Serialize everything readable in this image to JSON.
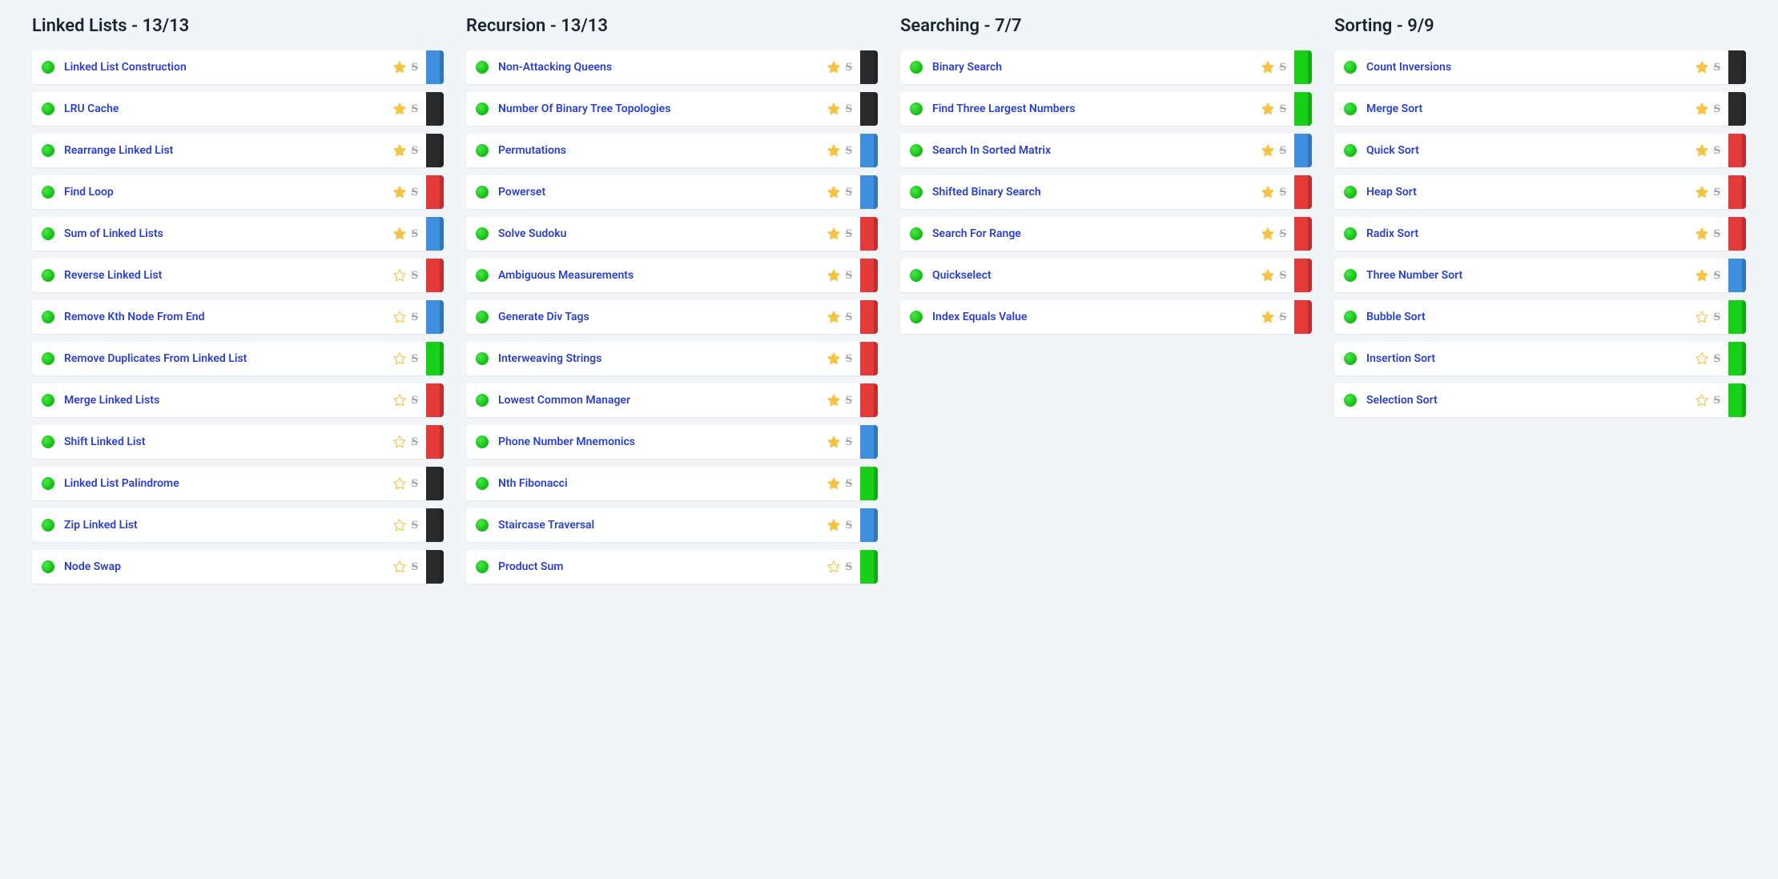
{
  "colors": {
    "background": "#f2f5f8",
    "card_bg": "#ffffff",
    "title_text": "#1a2533",
    "link_text": "#2b3fd1",
    "scratch": "#9aa3ad",
    "star_fill": "#f6c445",
    "star_stroke": "#f6c445",
    "dot": "#17c217",
    "diff": {
      "green": "#18d018",
      "blue": "#3f8fe0",
      "red": "#e43a3a",
      "black": "#2a2a2a"
    }
  },
  "scratch_glyph": "S",
  "columns": [
    {
      "title": "Linked Lists - 13/13",
      "items": [
        {
          "label": "Linked List Construction",
          "star": true,
          "diff": "blue"
        },
        {
          "label": "LRU Cache",
          "star": true,
          "diff": "black"
        },
        {
          "label": "Rearrange Linked List",
          "star": true,
          "diff": "black"
        },
        {
          "label": "Find Loop",
          "star": true,
          "diff": "red"
        },
        {
          "label": "Sum of Linked Lists",
          "star": true,
          "diff": "blue"
        },
        {
          "label": "Reverse Linked List",
          "star": false,
          "diff": "red"
        },
        {
          "label": "Remove Kth Node From End",
          "star": false,
          "diff": "blue"
        },
        {
          "label": "Remove Duplicates From Linked List",
          "star": false,
          "diff": "green"
        },
        {
          "label": "Merge Linked Lists",
          "star": false,
          "diff": "red"
        },
        {
          "label": "Shift Linked List",
          "star": false,
          "diff": "red"
        },
        {
          "label": "Linked List Palindrome",
          "star": false,
          "diff": "black"
        },
        {
          "label": "Zip Linked List",
          "star": false,
          "diff": "black"
        },
        {
          "label": "Node Swap",
          "star": false,
          "diff": "black"
        }
      ]
    },
    {
      "title": "Recursion - 13/13",
      "items": [
        {
          "label": "Non-Attacking Queens",
          "star": true,
          "diff": "black"
        },
        {
          "label": "Number Of Binary Tree Topologies",
          "star": true,
          "diff": "black"
        },
        {
          "label": "Permutations",
          "star": true,
          "diff": "blue"
        },
        {
          "label": "Powerset",
          "star": true,
          "diff": "blue"
        },
        {
          "label": "Solve Sudoku",
          "star": true,
          "diff": "red"
        },
        {
          "label": "Ambiguous Measurements",
          "star": true,
          "diff": "red"
        },
        {
          "label": "Generate Div Tags",
          "star": true,
          "diff": "red"
        },
        {
          "label": "Interweaving Strings",
          "star": true,
          "diff": "red"
        },
        {
          "label": "Lowest Common Manager",
          "star": true,
          "diff": "red"
        },
        {
          "label": "Phone Number Mnemonics",
          "star": true,
          "diff": "blue"
        },
        {
          "label": "Nth Fibonacci",
          "star": true,
          "diff": "green"
        },
        {
          "label": "Staircase Traversal",
          "star": true,
          "diff": "blue"
        },
        {
          "label": "Product Sum",
          "star": false,
          "diff": "green"
        }
      ]
    },
    {
      "title": "Searching - 7/7",
      "items": [
        {
          "label": "Binary Search",
          "star": true,
          "diff": "green"
        },
        {
          "label": "Find Three Largest Numbers",
          "star": true,
          "diff": "green"
        },
        {
          "label": "Search In Sorted Matrix",
          "star": true,
          "diff": "blue"
        },
        {
          "label": "Shifted Binary Search",
          "star": true,
          "diff": "red"
        },
        {
          "label": "Search For Range",
          "star": true,
          "diff": "red"
        },
        {
          "label": "Quickselect",
          "star": true,
          "diff": "red"
        },
        {
          "label": "Index Equals Value",
          "star": true,
          "diff": "red"
        }
      ]
    },
    {
      "title": "Sorting - 9/9",
      "items": [
        {
          "label": "Count Inversions",
          "star": true,
          "diff": "black"
        },
        {
          "label": "Merge Sort",
          "star": true,
          "diff": "black"
        },
        {
          "label": "Quick Sort",
          "star": true,
          "diff": "red"
        },
        {
          "label": "Heap Sort",
          "star": true,
          "diff": "red"
        },
        {
          "label": "Radix Sort",
          "star": true,
          "diff": "red"
        },
        {
          "label": "Three Number Sort",
          "star": true,
          "diff": "blue"
        },
        {
          "label": "Bubble Sort",
          "star": false,
          "diff": "green"
        },
        {
          "label": "Insertion Sort",
          "star": false,
          "diff": "green"
        },
        {
          "label": "Selection Sort",
          "star": false,
          "diff": "green"
        }
      ]
    }
  ]
}
